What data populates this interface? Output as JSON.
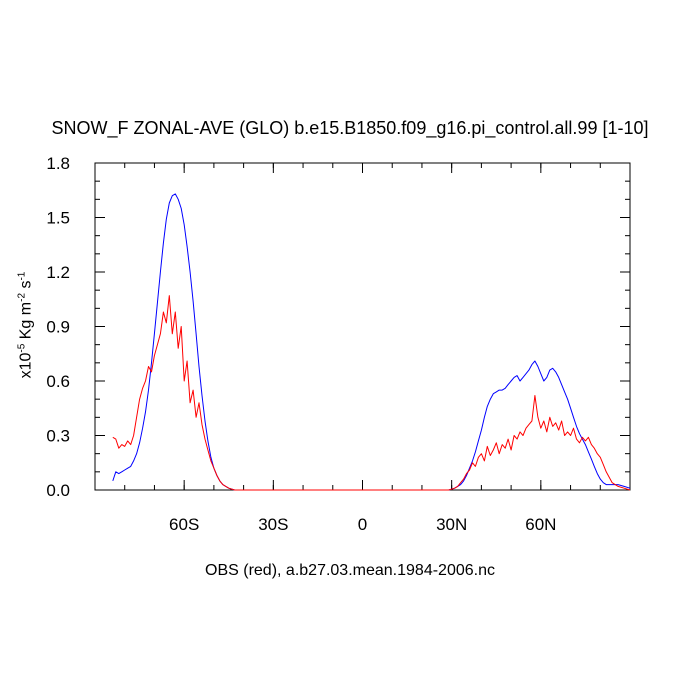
{
  "chart_data": {
    "type": "line",
    "title": "SNOW_F ZONAL-AVE (GLO) b.e15.B1850.f09_g16.pi_control.all.99 [1-10]",
    "xlabel": "OBS (red), a.b27.03.mean.1984-2006.nc",
    "ylabel": {
      "prefix": "x10",
      "exp1": "-5",
      "mid": " Kg m",
      "exp2": "-2",
      "mid2": " s",
      "exp3": "-1"
    },
    "xlim": [
      -90,
      90
    ],
    "ylim": [
      0,
      1.8
    ],
    "x_ticks": [
      {
        "value": -60,
        "label": "60S"
      },
      {
        "value": -30,
        "label": "30S"
      },
      {
        "value": 0,
        "label": "0"
      },
      {
        "value": 30,
        "label": "30N"
      },
      {
        "value": 60,
        "label": "60N"
      }
    ],
    "y_ticks": [
      {
        "value": 0,
        "label": "0.0"
      },
      {
        "value": 0.3,
        "label": "0.3"
      },
      {
        "value": 0.6,
        "label": "0.6"
      },
      {
        "value": 0.9,
        "label": "0.9"
      },
      {
        "value": 1.2,
        "label": "1.2"
      },
      {
        "value": 1.5,
        "label": "1.5"
      },
      {
        "value": 1.8,
        "label": "1.8"
      }
    ],
    "series": [
      {
        "color": "#0000ff",
        "x": [
          -84,
          -83,
          -82,
          -81,
          -80,
          -79,
          -78,
          -77,
          -76,
          -75,
          -74,
          -73,
          -72,
          -71,
          -70,
          -69,
          -68,
          -67,
          -66,
          -65,
          -64,
          -63,
          -62,
          -61,
          -60,
          -59,
          -58,
          -57,
          -56,
          -55,
          -54,
          -53,
          -52,
          -51,
          -50,
          -49,
          -48,
          -47,
          -46,
          -45,
          -44,
          -43,
          -42,
          -40,
          -35,
          -30,
          -20,
          -10,
          0,
          10,
          20,
          29,
          30,
          31,
          32,
          33,
          34,
          35,
          36,
          37,
          38,
          39,
          40,
          41,
          42,
          43,
          44,
          45,
          46,
          47,
          48,
          49,
          50,
          51,
          52,
          53,
          54,
          55,
          56,
          57,
          58,
          59,
          60,
          61,
          62,
          63,
          64,
          65,
          66,
          67,
          68,
          69,
          70,
          71,
          72,
          73,
          74,
          75,
          76,
          77,
          78,
          79,
          80,
          81,
          82,
          83,
          84,
          86,
          88,
          90
        ],
        "y": [
          0.05,
          0.1,
          0.09,
          0.1,
          0.11,
          0.12,
          0.13,
          0.16,
          0.2,
          0.26,
          0.34,
          0.43,
          0.55,
          0.7,
          0.86,
          1.03,
          1.2,
          1.36,
          1.49,
          1.58,
          1.62,
          1.63,
          1.6,
          1.55,
          1.46,
          1.34,
          1.2,
          1.04,
          0.86,
          0.68,
          0.52,
          0.38,
          0.27,
          0.18,
          0.12,
          0.08,
          0.05,
          0.03,
          0.02,
          0.01,
          0.005,
          0.0,
          0.0,
          0.0,
          0.0,
          0.0,
          0.0,
          0.0,
          0.0,
          0.0,
          0.0,
          0.0,
          0.005,
          0.01,
          0.02,
          0.03,
          0.05,
          0.08,
          0.12,
          0.16,
          0.21,
          0.27,
          0.33,
          0.4,
          0.46,
          0.5,
          0.53,
          0.54,
          0.55,
          0.55,
          0.56,
          0.58,
          0.6,
          0.62,
          0.63,
          0.6,
          0.62,
          0.64,
          0.66,
          0.69,
          0.71,
          0.68,
          0.64,
          0.6,
          0.62,
          0.66,
          0.67,
          0.65,
          0.62,
          0.58,
          0.54,
          0.5,
          0.45,
          0.4,
          0.35,
          0.31,
          0.28,
          0.25,
          0.21,
          0.17,
          0.13,
          0.09,
          0.06,
          0.04,
          0.03,
          0.03,
          0.03,
          0.03,
          0.02,
          0.01
        ]
      },
      {
        "color": "#ff0000",
        "x": [
          -84,
          -83,
          -82,
          -81,
          -80,
          -79,
          -78,
          -77,
          -76,
          -75,
          -74,
          -73,
          -72,
          -71,
          -70,
          -69,
          -68,
          -67,
          -66,
          -65,
          -64,
          -63,
          -62,
          -61,
          -60,
          -59,
          -58,
          -57,
          -56,
          -55,
          -54,
          -53,
          -52,
          -51,
          -50,
          -49,
          -48,
          -47,
          -46,
          -45,
          -44,
          -43,
          -42,
          -40,
          -35,
          -30,
          -20,
          -10,
          0,
          10,
          20,
          29,
          30,
          31,
          32,
          33,
          34,
          35,
          36,
          37,
          38,
          39,
          40,
          41,
          42,
          43,
          44,
          45,
          46,
          47,
          48,
          49,
          50,
          51,
          52,
          53,
          54,
          55,
          56,
          57,
          58,
          59,
          60,
          61,
          62,
          63,
          64,
          65,
          66,
          67,
          68,
          69,
          70,
          71,
          72,
          73,
          74,
          75,
          76,
          77,
          78,
          79,
          80,
          81,
          82,
          83,
          84,
          86,
          88,
          90
        ],
        "y": [
          0.29,
          0.28,
          0.23,
          0.25,
          0.24,
          0.27,
          0.25,
          0.3,
          0.4,
          0.5,
          0.56,
          0.6,
          0.68,
          0.65,
          0.74,
          0.8,
          0.86,
          0.98,
          0.92,
          1.07,
          0.86,
          0.98,
          0.78,
          0.9,
          0.6,
          0.71,
          0.48,
          0.55,
          0.4,
          0.48,
          0.36,
          0.28,
          0.22,
          0.16,
          0.12,
          0.08,
          0.05,
          0.03,
          0.02,
          0.01,
          0.005,
          0.0,
          0.0,
          0.0,
          0.0,
          0.0,
          0.0,
          0.0,
          0.0,
          0.0,
          0.0,
          0.0,
          0.005,
          0.01,
          0.02,
          0.04,
          0.06,
          0.09,
          0.11,
          0.15,
          0.13,
          0.18,
          0.2,
          0.16,
          0.24,
          0.19,
          0.22,
          0.26,
          0.2,
          0.25,
          0.23,
          0.28,
          0.22,
          0.3,
          0.28,
          0.32,
          0.3,
          0.34,
          0.36,
          0.38,
          0.52,
          0.4,
          0.34,
          0.38,
          0.32,
          0.4,
          0.35,
          0.37,
          0.33,
          0.38,
          0.3,
          0.32,
          0.3,
          0.34,
          0.28,
          0.26,
          0.29,
          0.27,
          0.29,
          0.25,
          0.23,
          0.2,
          0.18,
          0.14,
          0.1,
          0.07,
          0.04,
          0.02,
          0.01,
          0.0
        ]
      }
    ]
  }
}
